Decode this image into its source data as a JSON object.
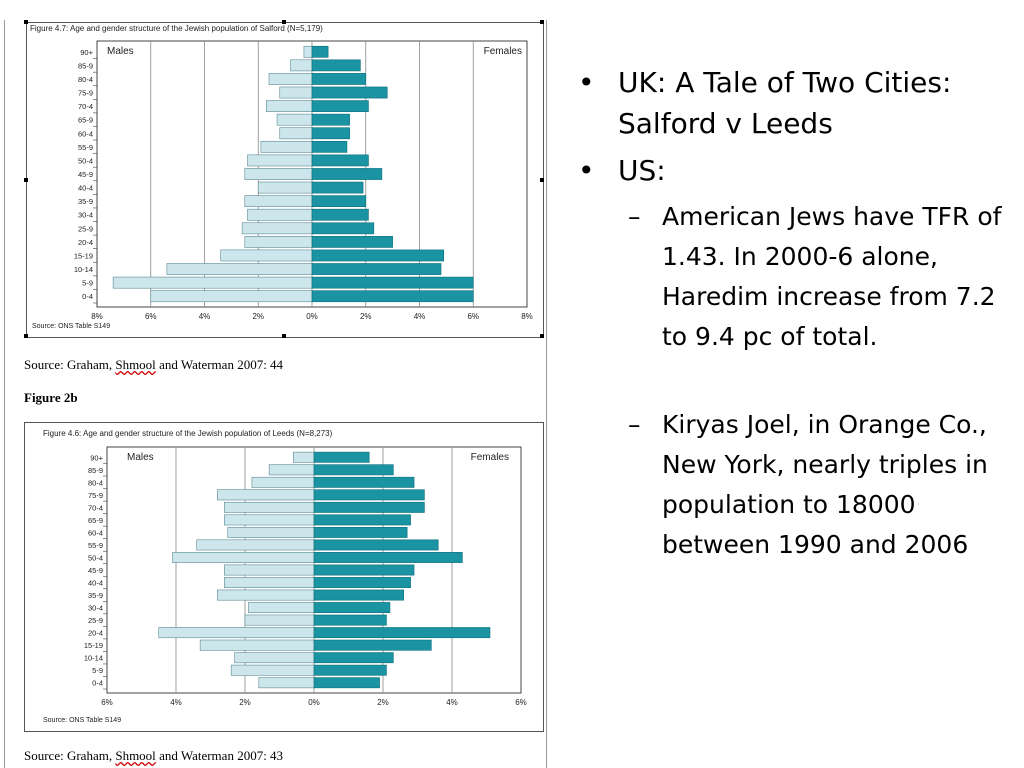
{
  "document": {
    "figure_a": {
      "title": "Figure 4.7: Age and gender structure of the Jewish population of Salford (N=5,179)",
      "source": "Source: ONS Table S149",
      "caption_prefix": "Source: Graham, ",
      "caption_underlined": "Shmool",
      "caption_suffix": " and Waterman 2007: 44"
    },
    "figure_b_label": "Figure 2b",
    "figure_b": {
      "title": "Figure 4.6: Age and gender structure of the Jewish population of Leeds (N=8,273)",
      "source": "Source: ONS Table S149",
      "caption_prefix": "Source: Graham, ",
      "caption_underlined": "Shmool",
      "caption_suffix": " and Waterman 2007: 43"
    }
  },
  "chart_data": [
    {
      "type": "bar",
      "orientation": "horizontal-population-pyramid",
      "categories": [
        "90+",
        "85-9",
        "80-4",
        "75-9",
        "70-4",
        "65-9",
        "60-4",
        "55-9",
        "50-4",
        "45-9",
        "40-4",
        "35-9",
        "30-4",
        "25-9",
        "20-4",
        "15-19",
        "10-14",
        "5-9",
        "0-4"
      ],
      "series": [
        {
          "name": "Males",
          "values": [
            0.3,
            0.8,
            1.6,
            1.2,
            1.7,
            1.3,
            1.2,
            1.9,
            2.4,
            2.5,
            2.0,
            2.5,
            2.4,
            2.6,
            2.5,
            3.4,
            5.4,
            7.4,
            6.0
          ]
        },
        {
          "name": "Females",
          "values": [
            0.6,
            1.8,
            2.0,
            2.8,
            2.1,
            1.4,
            1.4,
            1.3,
            2.1,
            2.6,
            1.9,
            2.0,
            2.1,
            2.3,
            3.0,
            4.9,
            4.8,
            6.0,
            6.0
          ]
        }
      ],
      "xticks": [
        "8%",
        "6%",
        "4%",
        "2%",
        "0%",
        "2%",
        "4%",
        "6%",
        "8%"
      ],
      "xlim": [
        -8,
        8
      ],
      "grid": "vertical",
      "colors": {
        "Males": "#cde6ec",
        "Females": "#1a93a2"
      }
    },
    {
      "type": "bar",
      "orientation": "horizontal-population-pyramid",
      "categories": [
        "90+",
        "85-9",
        "80-4",
        "75-9",
        "70-4",
        "65-9",
        "60-4",
        "55-9",
        "50-4",
        "45-9",
        "40-4",
        "35-9",
        "30-4",
        "25-9",
        "20-4",
        "15-19",
        "10-14",
        "5-9",
        "0-4"
      ],
      "series": [
        {
          "name": "Males",
          "values": [
            0.6,
            1.3,
            1.8,
            2.8,
            2.6,
            2.6,
            2.5,
            3.4,
            4.1,
            2.6,
            2.6,
            2.8,
            1.9,
            2.0,
            4.5,
            3.3,
            2.3,
            2.4,
            1.6
          ]
        },
        {
          "name": "Females",
          "values": [
            1.6,
            2.3,
            2.9,
            3.2,
            3.2,
            2.8,
            2.7,
            3.6,
            4.3,
            2.9,
            2.8,
            2.6,
            2.2,
            2.1,
            5.1,
            3.4,
            2.3,
            2.1,
            1.9
          ]
        }
      ],
      "xticks": [
        "6%",
        "4%",
        "2%",
        "0%",
        "2%",
        "4%",
        "6%"
      ],
      "xlim": [
        -6,
        6
      ],
      "grid": "vertical",
      "colors": {
        "Males": "#cde6ec",
        "Females": "#1a93a2"
      }
    }
  ],
  "bullets": [
    {
      "text": "UK: A Tale of Two Cities: Salford v Leeds"
    },
    {
      "text": "US:"
    }
  ],
  "sub_bullets": [
    {
      "text": "American Jews have TFR of 1.43. In 2000-6 alone, Haredim increase from 7.2 to 9.4 pc of total."
    },
    {
      "text": "Kiryas Joel, in Orange Co., New York, nearly triples in population to 18000 between 1990 and 2006"
    }
  ]
}
